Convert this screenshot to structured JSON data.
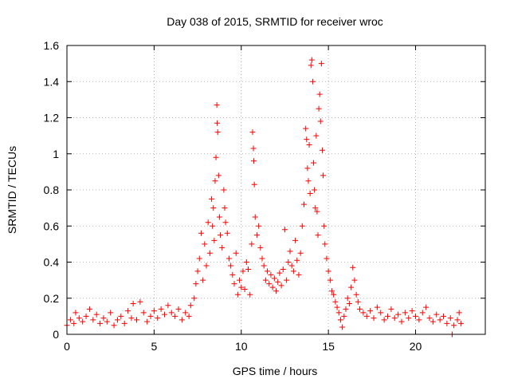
{
  "chart_data": {
    "type": "scatter",
    "title": "Day 038 of 2015, SRMTID for receiver wroc",
    "xlabel": "GPS time / hours",
    "ylabel": "SRMTID / TECUs",
    "xlim": [
      0,
      24
    ],
    "ylim": [
      0,
      1.6
    ],
    "xticks": [
      0,
      5,
      10,
      15,
      20
    ],
    "yticks": [
      0,
      0.2,
      0.4,
      0.6,
      0.8,
      1,
      1.2,
      1.4,
      1.6
    ],
    "xtick_labels": [
      "0",
      "5",
      "10",
      "15",
      "20"
    ],
    "ytick_labels": [
      "0",
      "0.2",
      "0.4",
      "0.6",
      "0.8",
      "1",
      "1.2",
      "1.4",
      "1.6"
    ],
    "grid": true,
    "marker": "plus",
    "color": "#ff0000",
    "series": [
      {
        "name": "SRMTID",
        "points": [
          [
            0.0,
            0.05
          ],
          [
            0.2,
            0.08
          ],
          [
            0.4,
            0.06
          ],
          [
            0.5,
            0.12
          ],
          [
            0.7,
            0.09
          ],
          [
            0.9,
            0.07
          ],
          [
            1.1,
            0.1
          ],
          [
            1.3,
            0.14
          ],
          [
            1.5,
            0.08
          ],
          [
            1.7,
            0.11
          ],
          [
            1.9,
            0.06
          ],
          [
            2.1,
            0.09
          ],
          [
            2.3,
            0.07
          ],
          [
            2.5,
            0.12
          ],
          [
            2.7,
            0.05
          ],
          [
            2.9,
            0.08
          ],
          [
            3.1,
            0.1
          ],
          [
            3.3,
            0.06
          ],
          [
            3.5,
            0.13
          ],
          [
            3.7,
            0.09
          ],
          [
            3.8,
            0.17
          ],
          [
            4.0,
            0.08
          ],
          [
            4.2,
            0.18
          ],
          [
            4.4,
            0.12
          ],
          [
            4.6,
            0.07
          ],
          [
            4.8,
            0.1
          ],
          [
            5.0,
            0.13
          ],
          [
            5.2,
            0.09
          ],
          [
            5.4,
            0.14
          ],
          [
            5.6,
            0.11
          ],
          [
            5.8,
            0.16
          ],
          [
            6.0,
            0.12
          ],
          [
            6.2,
            0.1
          ],
          [
            6.4,
            0.14
          ],
          [
            6.6,
            0.08
          ],
          [
            6.8,
            0.12
          ],
          [
            7.0,
            0.1
          ],
          [
            7.1,
            0.16
          ],
          [
            7.3,
            0.2
          ],
          [
            7.4,
            0.28
          ],
          [
            7.5,
            0.35
          ],
          [
            7.6,
            0.42
          ],
          [
            7.7,
            0.56
          ],
          [
            7.8,
            0.3
          ],
          [
            7.9,
            0.5
          ],
          [
            8.0,
            0.38
          ],
          [
            8.1,
            0.62
          ],
          [
            8.2,
            0.45
          ],
          [
            8.3,
            0.75
          ],
          [
            8.35,
            0.6
          ],
          [
            8.4,
            0.7
          ],
          [
            8.45,
            0.52
          ],
          [
            8.5,
            0.85
          ],
          [
            8.55,
            0.98
          ],
          [
            8.6,
            1.27
          ],
          [
            8.62,
            1.17
          ],
          [
            8.65,
            1.12
          ],
          [
            8.7,
            0.88
          ],
          [
            8.75,
            0.65
          ],
          [
            8.8,
            0.55
          ],
          [
            8.9,
            0.48
          ],
          [
            9.0,
            0.8
          ],
          [
            9.05,
            0.7
          ],
          [
            9.1,
            0.62
          ],
          [
            9.2,
            0.56
          ],
          [
            9.3,
            0.42
          ],
          [
            9.4,
            0.38
          ],
          [
            9.5,
            0.33
          ],
          [
            9.6,
            0.28
          ],
          [
            9.7,
            0.45
          ],
          [
            9.8,
            0.22
          ],
          [
            9.9,
            0.3
          ],
          [
            10.0,
            0.26
          ],
          [
            10.1,
            0.35
          ],
          [
            10.2,
            0.25
          ],
          [
            10.3,
            0.4
          ],
          [
            10.4,
            0.36
          ],
          [
            10.5,
            0.22
          ],
          [
            10.6,
            0.5
          ],
          [
            10.65,
            1.12
          ],
          [
            10.7,
            1.03
          ],
          [
            10.72,
            0.96
          ],
          [
            10.75,
            0.83
          ],
          [
            10.8,
            0.65
          ],
          [
            10.9,
            0.55
          ],
          [
            11.0,
            0.6
          ],
          [
            11.1,
            0.48
          ],
          [
            11.2,
            0.42
          ],
          [
            11.3,
            0.38
          ],
          [
            11.4,
            0.3
          ],
          [
            11.5,
            0.35
          ],
          [
            11.6,
            0.28
          ],
          [
            11.7,
            0.33
          ],
          [
            11.8,
            0.26
          ],
          [
            11.9,
            0.31
          ],
          [
            12.0,
            0.24
          ],
          [
            12.1,
            0.29
          ],
          [
            12.2,
            0.34
          ],
          [
            12.3,
            0.27
          ],
          [
            12.4,
            0.36
          ],
          [
            12.5,
            0.58
          ],
          [
            12.6,
            0.3
          ],
          [
            12.7,
            0.4
          ],
          [
            12.8,
            0.46
          ],
          [
            12.9,
            0.38
          ],
          [
            13.0,
            0.35
          ],
          [
            13.1,
            0.52
          ],
          [
            13.2,
            0.41
          ],
          [
            13.3,
            0.33
          ],
          [
            13.4,
            0.45
          ],
          [
            13.5,
            0.6
          ],
          [
            13.6,
            0.72
          ],
          [
            13.7,
            1.14
          ],
          [
            13.75,
            1.08
          ],
          [
            13.8,
            0.92
          ],
          [
            13.85,
            0.85
          ],
          [
            13.9,
            1.05
          ],
          [
            13.95,
            0.78
          ],
          [
            14.0,
            1.49
          ],
          [
            14.05,
            1.52
          ],
          [
            14.1,
            1.4
          ],
          [
            14.15,
            0.95
          ],
          [
            14.2,
            0.8
          ],
          [
            14.25,
            0.7
          ],
          [
            14.3,
            1.1
          ],
          [
            14.35,
            0.68
          ],
          [
            14.4,
            0.55
          ],
          [
            14.45,
            1.25
          ],
          [
            14.5,
            1.33
          ],
          [
            14.55,
            1.18
          ],
          [
            14.6,
            1.5
          ],
          [
            14.65,
            1.02
          ],
          [
            14.7,
            0.88
          ],
          [
            14.75,
            0.6
          ],
          [
            14.8,
            0.5
          ],
          [
            14.9,
            0.42
          ],
          [
            15.0,
            0.35
          ],
          [
            15.1,
            0.3
          ],
          [
            15.2,
            0.24
          ],
          [
            15.3,
            0.22
          ],
          [
            15.4,
            0.18
          ],
          [
            15.5,
            0.15
          ],
          [
            15.6,
            0.12
          ],
          [
            15.7,
            0.08
          ],
          [
            15.8,
            0.04
          ],
          [
            15.9,
            0.1
          ],
          [
            16.0,
            0.14
          ],
          [
            16.1,
            0.2
          ],
          [
            16.2,
            0.17
          ],
          [
            16.3,
            0.26
          ],
          [
            16.4,
            0.37
          ],
          [
            16.5,
            0.3
          ],
          [
            16.6,
            0.22
          ],
          [
            16.7,
            0.18
          ],
          [
            16.8,
            0.14
          ],
          [
            17.0,
            0.12
          ],
          [
            17.2,
            0.1
          ],
          [
            17.4,
            0.13
          ],
          [
            17.6,
            0.09
          ],
          [
            17.8,
            0.15
          ],
          [
            18.0,
            0.12
          ],
          [
            18.2,
            0.08
          ],
          [
            18.4,
            0.1
          ],
          [
            18.6,
            0.14
          ],
          [
            18.8,
            0.09
          ],
          [
            19.0,
            0.11
          ],
          [
            19.2,
            0.07
          ],
          [
            19.4,
            0.12
          ],
          [
            19.6,
            0.09
          ],
          [
            19.8,
            0.13
          ],
          [
            20.0,
            0.1
          ],
          [
            20.2,
            0.08
          ],
          [
            20.4,
            0.12
          ],
          [
            20.6,
            0.15
          ],
          [
            20.8,
            0.09
          ],
          [
            21.0,
            0.07
          ],
          [
            21.2,
            0.11
          ],
          [
            21.4,
            0.08
          ],
          [
            21.6,
            0.1
          ],
          [
            21.8,
            0.06
          ],
          [
            22.0,
            0.09
          ],
          [
            22.1,
            0.0
          ],
          [
            22.2,
            0.05
          ],
          [
            22.4,
            0.08
          ],
          [
            22.5,
            0.12
          ],
          [
            22.6,
            0.06
          ]
        ]
      }
    ]
  }
}
